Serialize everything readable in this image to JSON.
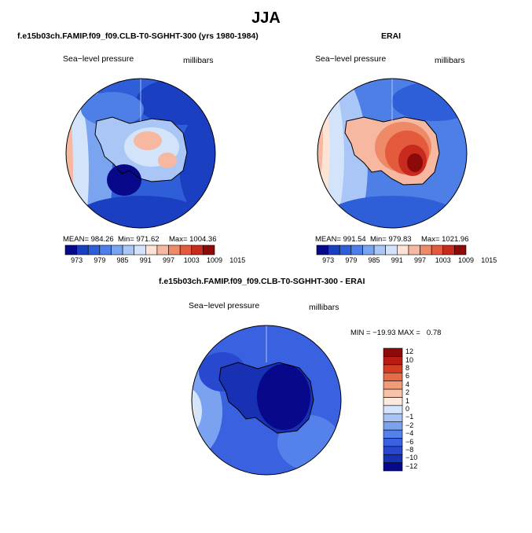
{
  "title": "JJA",
  "panels": {
    "model": {
      "title": "f.e15b03ch.FAMIP.f09_f09.CLB-T0-SGHHT-300 (yrs 1980-1984)",
      "field": "Sea−level pressure",
      "units": "millibars",
      "stats": {
        "mean": "MEAN= 984.26",
        "min": "Min= 971.62",
        "max": "Max= 1004.36"
      }
    },
    "obs": {
      "title": "ERAI",
      "field": "Sea−level pressure",
      "units": "millibars",
      "stats": {
        "mean": "MEAN= 991.54",
        "min": "Min= 979.83",
        "max": "Max= 1021.96"
      }
    },
    "diff": {
      "title": "f.e15b03ch.FAMIP.f09_f09.CLB-T0-SGHHT-300 - ERAI",
      "field": "Sea−level pressure",
      "units": "millibars",
      "stats": "MIN = −19.93 MAX =   0.78"
    }
  },
  "colorbar_abs": {
    "colors": [
      "#08088a",
      "#1a3fc0",
      "#2f5fd8",
      "#4d7fe6",
      "#7aa3f0",
      "#a9c6f6",
      "#d3e3fa",
      "#fbe3d6",
      "#f6b8a0",
      "#ef8a68",
      "#e35a3c",
      "#c92a1e",
      "#8c0a0a"
    ],
    "labels": [
      "973",
      "979",
      "985",
      "991",
      "997",
      "1003",
      "1009",
      "1015"
    ]
  },
  "colorbar_diff": {
    "colors": [
      "#08088a",
      "#1730b4",
      "#2848d0",
      "#3a62e0",
      "#5582ea",
      "#7aa2f0",
      "#a8c4f6",
      "#d4e4fa",
      "#fde9dd",
      "#f8c2a8",
      "#f19a78",
      "#e66b48",
      "#d63c22",
      "#b81c12",
      "#8c0a0a"
    ],
    "labels": [
      "12",
      "10",
      "8",
      "6",
      "4",
      "2",
      "1",
      "0",
      "−1",
      "−2",
      "−4",
      "−6",
      "−8",
      "−10",
      "−12"
    ]
  }
}
